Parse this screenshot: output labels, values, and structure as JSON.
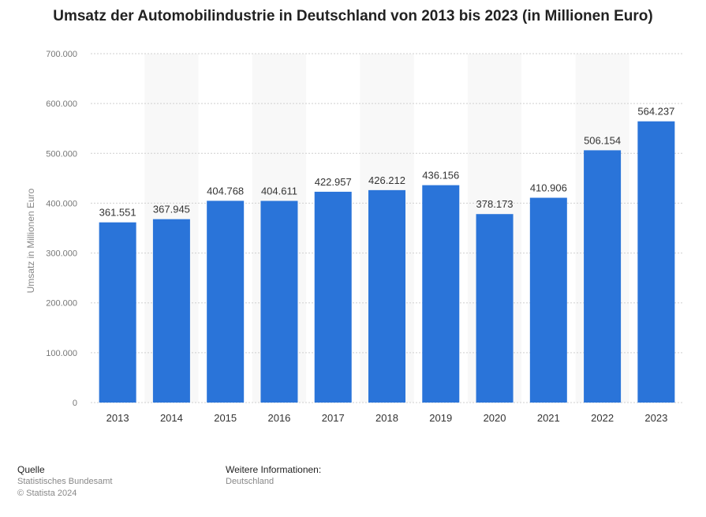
{
  "title": "Umsatz der Automobilindustrie in Deutschland von 2013 bis 2023 (in Millionen Euro)",
  "chart_data": {
    "type": "bar",
    "title": "Umsatz der Automobilindustrie in Deutschland von 2013 bis 2023 (in Millionen Euro)",
    "xlabel": "",
    "ylabel": "Umsatz in Millionen Euro",
    "ylim": [
      0,
      700000
    ],
    "yticks": [
      0,
      100000,
      200000,
      300000,
      400000,
      500000,
      600000,
      700000
    ],
    "ytick_labels": [
      "0",
      "100.000",
      "200.000",
      "300.000",
      "400.000",
      "500.000",
      "600.000",
      "700.000"
    ],
    "categories": [
      "2013",
      "2014",
      "2015",
      "2016",
      "2017",
      "2018",
      "2019",
      "2020",
      "2021",
      "2022",
      "2023"
    ],
    "values": [
      361551,
      367945,
      404768,
      404611,
      422957,
      426212,
      436156,
      378173,
      410906,
      506154,
      564237
    ],
    "value_labels": [
      "361.551",
      "367.945",
      "404.768",
      "404.611",
      "422.957",
      "426.212",
      "436.156",
      "378.173",
      "410.906",
      "506.154",
      "564.237"
    ],
    "bar_color": "#2a74d9",
    "grid": true
  },
  "footer": {
    "source_heading": "Quelle",
    "source_name": "Statistisches Bundesamt",
    "copyright": "© Statista 2024",
    "info_heading": "Weitere Informationen:",
    "info_value": "Deutschland"
  }
}
